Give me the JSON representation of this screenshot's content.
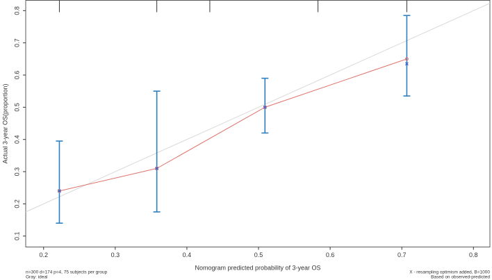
{
  "chart_data": {
    "type": "calibration",
    "x_label": "Nomogram predicted probability of 3-year OS",
    "y_label": "Actual 3-year OS(proportion)",
    "notes_left": [
      "n=300 d=174 p=4, 75 subjects per group",
      "Gray: ideal"
    ],
    "notes_right": [
      "X - resampling optimism added, B=1000",
      "Based on observed-predicted"
    ],
    "x": [
      0.222,
      0.358,
      0.509,
      0.707
    ],
    "observed": [
      0.24,
      0.31,
      0.5,
      0.65
    ],
    "corrected": [
      0.24,
      0.31,
      0.5,
      0.635
    ],
    "lower": [
      0.14,
      0.175,
      0.42,
      0.535
    ],
    "upper": [
      0.395,
      0.55,
      0.59,
      0.785
    ],
    "rug": [
      0.222,
      0.358,
      0.432,
      0.583,
      0.707
    ],
    "observed_color": "#e0736b",
    "corrected_color": "#3a5fcd",
    "bar_color": "#2e7fbf",
    "ideal_color": "#d9d9d9",
    "xlim": [
      0.175,
      0.823
    ],
    "ylim": [
      0.066,
      0.832
    ],
    "xticks": [
      0.2,
      0.3,
      0.4,
      0.5,
      0.6,
      0.7,
      0.8
    ],
    "yticks": [
      0.1,
      0.2,
      0.3,
      0.4,
      0.5,
      0.6,
      0.7,
      0.8
    ]
  }
}
